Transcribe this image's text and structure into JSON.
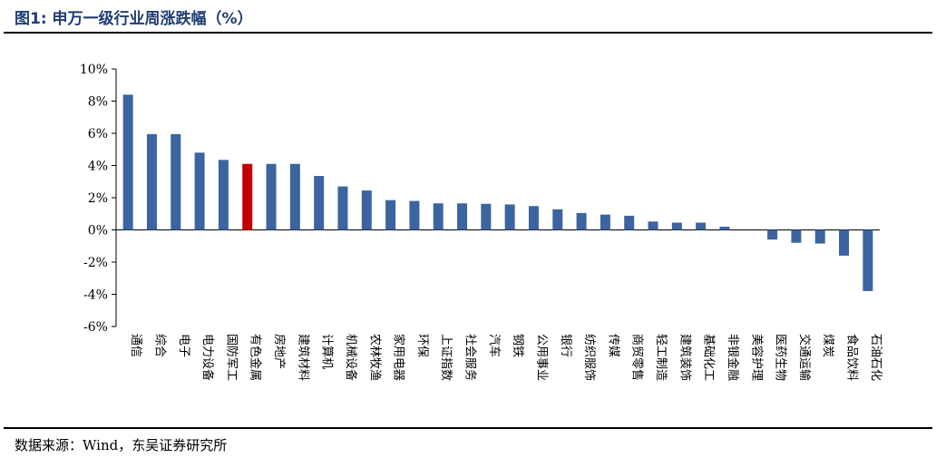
{
  "header": {
    "title": "图1:  申万一级行业周涨跌幅（%）"
  },
  "footer": {
    "source": "数据来源：Wind，东吴证券研究所"
  },
  "colors": {
    "bar": "#3c64a0",
    "highlight": "#c00000",
    "axis": "#000000"
  },
  "chart_data": {
    "type": "bar",
    "title": "",
    "xlabel": "",
    "ylabel": "",
    "ylim": [
      -6,
      10
    ],
    "yticks": [
      -6,
      -4,
      -2,
      0,
      2,
      4,
      6,
      8,
      10
    ],
    "ytick_suffix": "%",
    "highlight_category": "有色金属",
    "categories": [
      "通信",
      "综合",
      "电子",
      "电力设备",
      "国防军工",
      "有色金属",
      "房地产",
      "建筑材料",
      "计算机",
      "机械设备",
      "农林牧渔",
      "家用电器",
      "环保",
      "上证指数",
      "社会服务",
      "汽车",
      "钢铁",
      "公用事业",
      "银行",
      "纺织服饰",
      "传媒",
      "商贸零售",
      "轻工制造",
      "建筑装饰",
      "基础化工",
      "非银金融",
      "美容护理",
      "医药生物",
      "交通运输",
      "煤炭",
      "食品饮料",
      "石油石化"
    ],
    "values": [
      8.4,
      5.95,
      5.95,
      4.8,
      4.35,
      4.1,
      4.1,
      4.1,
      3.35,
      2.7,
      2.45,
      1.85,
      1.8,
      1.65,
      1.65,
      1.62,
      1.58,
      1.48,
      1.28,
      1.05,
      0.95,
      0.88,
      0.52,
      0.45,
      0.45,
      0.2,
      0.0,
      -0.6,
      -0.8,
      -0.85,
      -1.6,
      -3.8
    ]
  }
}
